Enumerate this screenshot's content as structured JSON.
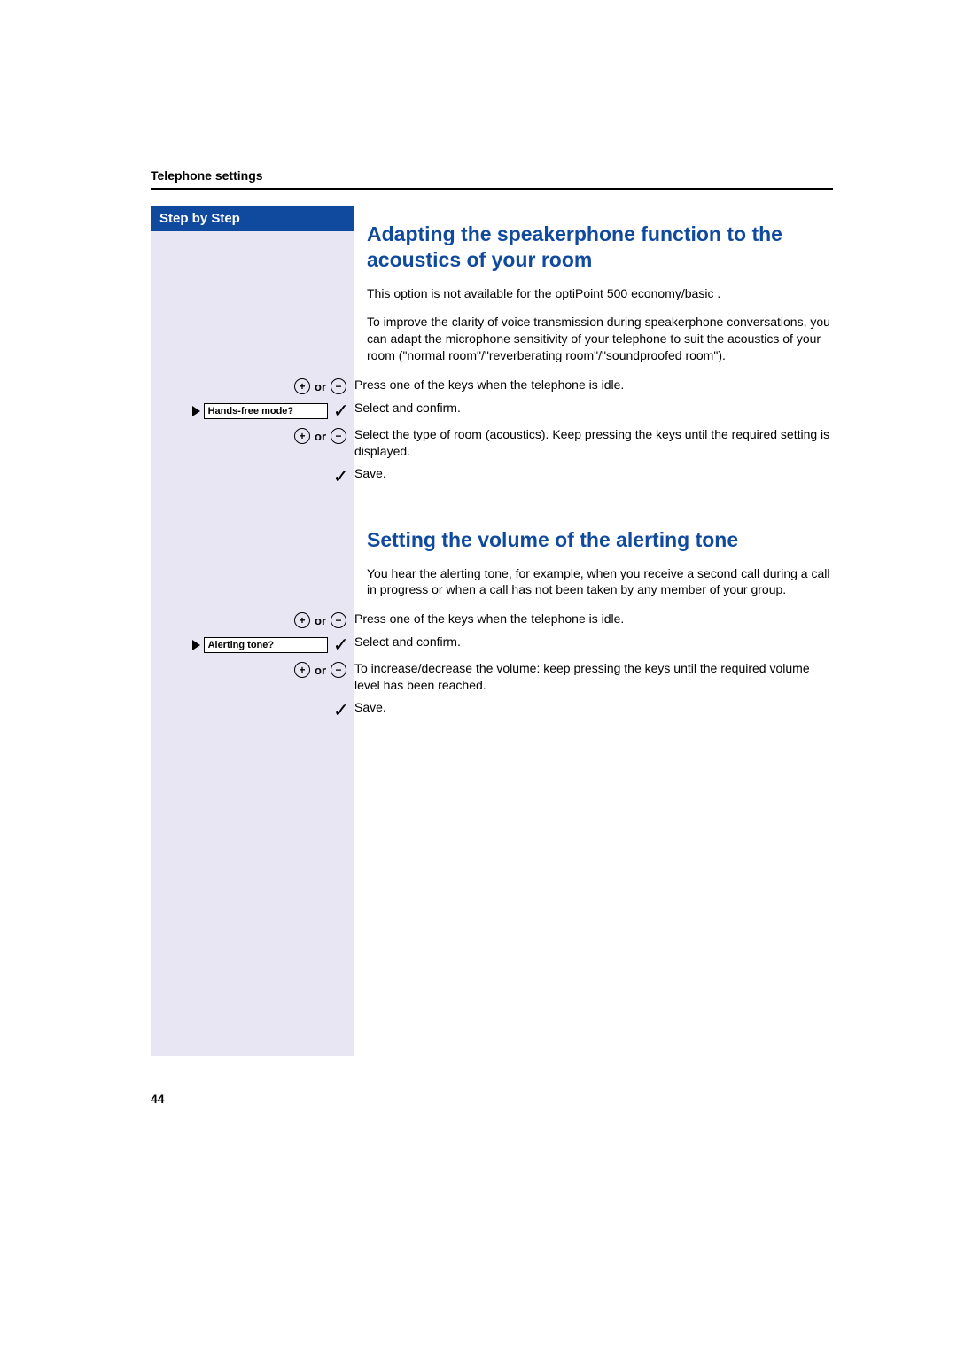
{
  "runningHead": "Telephone settings",
  "pageNumber": "44",
  "stepByStep": "Step by Step",
  "colors": {
    "accent": "#104a9e",
    "leftPanelBg": "#e9e6f4",
    "text": "#000000",
    "pageBg": "#ffffff"
  },
  "section1": {
    "title": "Adapting the speakerphone function to the acoustics of your room",
    "para1": "This option is not available for the optiPoint 500 economy/basic .",
    "para2": "To improve the clarity of voice transmission during speakerphone conversations, you can adapt the microphone sensitivity of your telephone to suit the acoustics of your room (\"normal room\"/\"reverberating room\"/\"soundproofed room\").",
    "steps": [
      {
        "left": "plusminus",
        "right": "Press one of the keys when the telephone is idle."
      },
      {
        "left": "display",
        "display": "Hands-free mode?",
        "right": "Select and confirm."
      },
      {
        "left": "plusminus",
        "right": "Select the type of room (acoustics). Keep pressing the keys until the required setting is displayed."
      },
      {
        "left": "check",
        "right": "Save."
      }
    ]
  },
  "section2": {
    "title": "Setting the volume of the alerting tone",
    "para1": "You hear the alerting tone, for example, when you receive a second call during a call in progress or when a call has not been taken by any member of your group.",
    "steps": [
      {
        "left": "plusminus",
        "right": "Press one of the keys when the telephone is idle."
      },
      {
        "left": "display",
        "display": "Alerting tone?",
        "right": "Select and confirm."
      },
      {
        "left": "plusminus",
        "right": "To increase/decrease the volume: keep pressing the keys until the required volume level has been reached."
      },
      {
        "left": "check",
        "right": "Save."
      }
    ]
  },
  "symbols": {
    "plus": "+",
    "minus": "−",
    "or": "or",
    "check": "✓"
  }
}
